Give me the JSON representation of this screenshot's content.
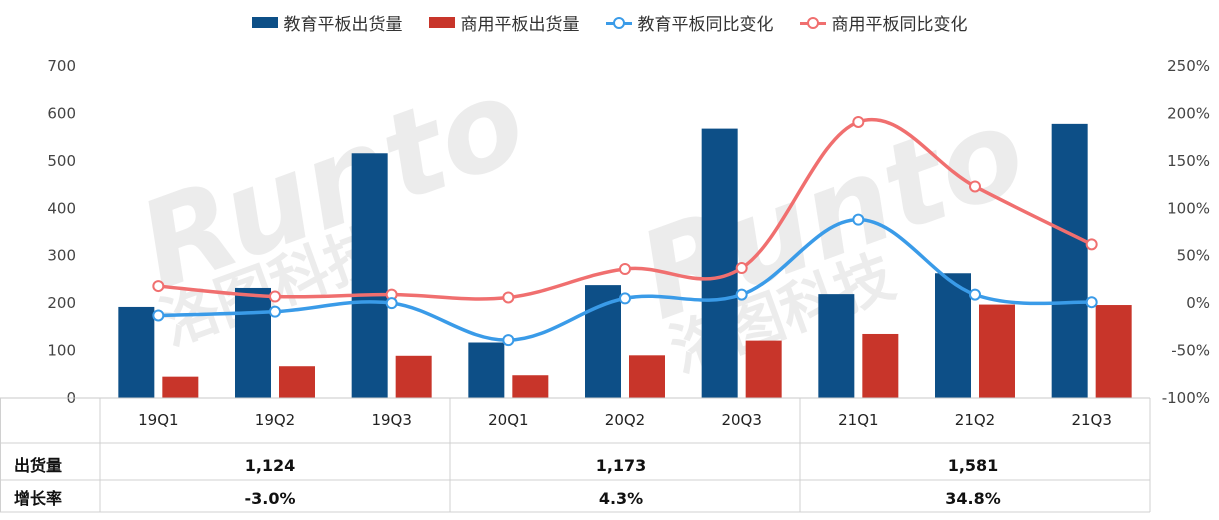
{
  "legend": [
    {
      "label": "教育平板出货量",
      "kind": "bar",
      "color": "#0d4f87"
    },
    {
      "label": "商用平板出货量",
      "kind": "bar",
      "color": "#c8352a"
    },
    {
      "label": "教育平板同比变化",
      "kind": "line",
      "color": "#3a9be8"
    },
    {
      "label": "商用平板同比变化",
      "kind": "line",
      "color": "#f06f6f"
    }
  ],
  "chart_data": {
    "type": "bar",
    "categories": [
      "19Q1",
      "19Q2",
      "19Q3",
      "20Q1",
      "20Q2",
      "20Q3",
      "21Q1",
      "21Q2",
      "21Q3"
    ],
    "series": [
      {
        "name": "教育平板出货量",
        "type": "bar",
        "axis": "left",
        "color": "#0d4f87",
        "values": [
          192,
          232,
          516,
          117,
          238,
          568,
          219,
          263,
          578
        ]
      },
      {
        "name": "商用平板出货量",
        "type": "bar",
        "axis": "left",
        "color": "#c8352a",
        "values": [
          45,
          67,
          89,
          48,
          90,
          121,
          135,
          197,
          196
        ]
      },
      {
        "name": "教育平板同比变化",
        "type": "line",
        "axis": "right",
        "color": "#3a9be8",
        "values": [
          -13,
          -9,
          0,
          -39,
          5,
          9,
          88,
          9,
          1
        ]
      },
      {
        "name": "商用平板同比变化",
        "type": "line",
        "axis": "right",
        "color": "#f06f6f",
        "values": [
          18,
          7,
          9,
          6,
          36,
          37,
          191,
          123,
          62
        ]
      }
    ],
    "y_left": {
      "min": 0,
      "max": 700,
      "ticks": [
        0,
        100,
        200,
        300,
        400,
        500,
        600,
        700
      ]
    },
    "y_right": {
      "min": -100,
      "max": 250,
      "ticks": [
        "-100%",
        "-50%",
        "0%",
        "50%",
        "100%",
        "150%",
        "200%",
        "250%"
      ]
    },
    "grid": false,
    "legend_position": "top"
  },
  "table": {
    "row_labels": [
      "出货量",
      "增长率"
    ],
    "groups": [
      {
        "shipments": "1,124",
        "growth": "-3.0%"
      },
      {
        "shipments": "1,173",
        "growth": "4.3%"
      },
      {
        "shipments": "1,581",
        "growth": "34.8%"
      }
    ]
  },
  "watermark": "Runto 洛图科技"
}
